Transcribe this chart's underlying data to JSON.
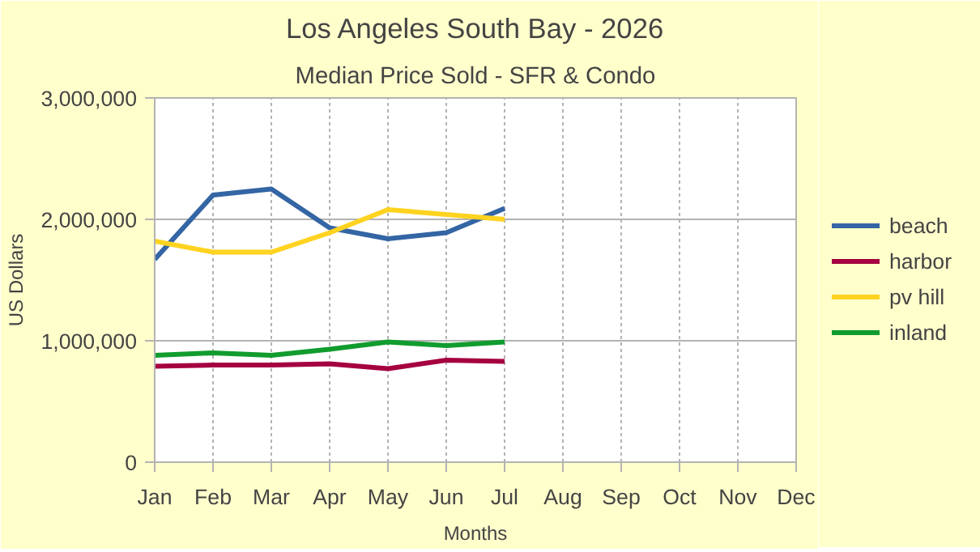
{
  "chart_data": {
    "type": "line",
    "title": "Los Angeles South Bay - 2026",
    "subtitle": "Median Price Sold - SFR & Condo",
    "xlabel": "Months",
    "ylabel": "US Dollars",
    "categories": [
      "Jan",
      "Feb",
      "Mar",
      "Apr",
      "May",
      "Jun",
      "Jul",
      "Aug",
      "Sep",
      "Oct",
      "Nov",
      "Dec"
    ],
    "series": [
      {
        "name": "beach",
        "color": "#3465a4",
        "values": [
          1670000,
          2200000,
          2250000,
          1930000,
          1840000,
          1890000,
          2090000,
          null,
          null,
          null,
          null,
          null
        ]
      },
      {
        "name": "harbor",
        "color": "#a50040",
        "values": [
          790000,
          800000,
          800000,
          810000,
          770000,
          840000,
          830000,
          null,
          null,
          null,
          null,
          null
        ]
      },
      {
        "name": "pv hill",
        "color": "#ffd320",
        "values": [
          1820000,
          1730000,
          1730000,
          1890000,
          2080000,
          2040000,
          2000000,
          null,
          null,
          null,
          null,
          null
        ]
      },
      {
        "name": "inland",
        "color": "#119c2e",
        "values": [
          880000,
          900000,
          880000,
          930000,
          990000,
          960000,
          990000,
          null,
          null,
          null,
          null,
          null
        ]
      }
    ],
    "ylim": [
      0,
      3000000
    ],
    "yticks": [
      0,
      {
        "value": 1000000,
        "label": "1,000,000"
      },
      {
        "value": 2000000,
        "label": "2,000,000"
      },
      {
        "value": 3000000,
        "label": "3,000,000"
      }
    ],
    "grid": true,
    "legend": "right",
    "marker": "none",
    "line_style": "solid"
  }
}
